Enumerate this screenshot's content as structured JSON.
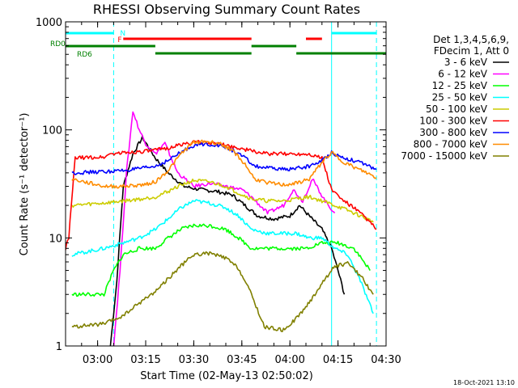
{
  "chart_data": {
    "type": "line",
    "title": "RHESSI Observing Summary Count Rates",
    "xlabel": "Start Time (02-May-13 02:50:02)",
    "ylabel": "Count Rate (s⁻¹ detector⁻¹)",
    "yscale": "log",
    "ylim": [
      1,
      1000
    ],
    "xlim": [
      "02:50",
      "04:30"
    ],
    "x_tick_labels": [
      "03:00",
      "03:15",
      "03:30",
      "03:45",
      "04:00",
      "04:15",
      "04:30"
    ],
    "y_tick_labels": [
      "1",
      "10",
      "100",
      "1000"
    ],
    "legend_header": [
      "Det 1,3,4,5,6,9,",
      "FDecim 1, Att 0"
    ],
    "legend_position": "right",
    "footer": "18-Oct-2021 13:10",
    "flags": [
      {
        "label": "N",
        "color": "#00ffff",
        "segments": [
          [
            "02:50",
            "03:05"
          ],
          [
            "04:13",
            "04:27"
          ]
        ]
      },
      {
        "label": "F",
        "color": "#ff0000",
        "segments": [
          [
            "03:08",
            "03:48"
          ],
          [
            "04:05",
            "04:10"
          ]
        ]
      },
      {
        "label": "RD0",
        "color": "#008000",
        "segments": [
          [
            "02:50",
            "03:18"
          ],
          [
            "03:48",
            "04:02"
          ]
        ]
      },
      {
        "label": "RD6",
        "color": "#008000",
        "segments": [
          [
            "03:18",
            "03:48"
          ],
          [
            "04:02",
            "04:30"
          ]
        ]
      }
    ],
    "vlines": [
      {
        "color": "#00ffff",
        "style": "solid",
        "t": [
          "02:50",
          "04:13"
        ]
      },
      {
        "color": "#00ffff",
        "style": "dashed",
        "t": [
          "03:05",
          "04:27"
        ]
      }
    ],
    "series": [
      {
        "name": "3 - 6 keV",
        "color": "#000000",
        "points": [
          [
            "03:04",
            1
          ],
          [
            "03:06",
            4
          ],
          [
            "03:08",
            30
          ],
          [
            "03:11",
            60
          ],
          [
            "03:14",
            85
          ],
          [
            "03:18",
            55
          ],
          [
            "03:22",
            40
          ],
          [
            "03:27",
            30
          ],
          [
            "03:32",
            28
          ],
          [
            "03:37",
            27
          ],
          [
            "03:42",
            25
          ],
          [
            "03:46",
            20
          ],
          [
            "03:50",
            16
          ],
          [
            "03:55",
            15
          ],
          [
            "04:00",
            16
          ],
          [
            "04:03",
            20
          ],
          [
            "04:06",
            16
          ],
          [
            "04:10",
            12
          ],
          [
            "04:13",
            8
          ],
          [
            "04:15",
            5
          ],
          [
            "04:17",
            3
          ]
        ]
      },
      {
        "name": "6 - 12 keV",
        "color": "#ff00ff",
        "points": [
          [
            "03:05",
            1
          ],
          [
            "03:07",
            5
          ],
          [
            "03:09",
            40
          ],
          [
            "03:11",
            150
          ],
          [
            "03:13",
            100
          ],
          [
            "03:15",
            75
          ],
          [
            "03:18",
            60
          ],
          [
            "03:21",
            75
          ],
          [
            "03:25",
            40
          ],
          [
            "03:30",
            30
          ],
          [
            "03:35",
            32
          ],
          [
            "03:40",
            30
          ],
          [
            "03:45",
            28
          ],
          [
            "03:48",
            24
          ],
          [
            "03:53",
            17
          ],
          [
            "03:58",
            20
          ],
          [
            "04:01",
            28
          ],
          [
            "04:04",
            22
          ],
          [
            "04:07",
            35
          ],
          [
            "04:11",
            22
          ],
          [
            "04:14",
            17
          ]
        ]
      },
      {
        "name": "12 - 25 keV",
        "color": "#00ff00",
        "points": [
          [
            "02:52",
            3
          ],
          [
            "03:02",
            3
          ],
          [
            "03:05",
            5
          ],
          [
            "03:08",
            7
          ],
          [
            "03:13",
            8
          ],
          [
            "03:18",
            8
          ],
          [
            "03:22",
            10
          ],
          [
            "03:26",
            12
          ],
          [
            "03:30",
            13
          ],
          [
            "03:35",
            13
          ],
          [
            "03:40",
            12
          ],
          [
            "03:44",
            10
          ],
          [
            "03:48",
            8
          ],
          [
            "03:55",
            8
          ],
          [
            "04:00",
            8
          ],
          [
            "04:05",
            8
          ],
          [
            "04:10",
            9
          ],
          [
            "04:15",
            9
          ],
          [
            "04:20",
            8
          ],
          [
            "04:25",
            5
          ]
        ]
      },
      {
        "name": "25 - 50 keV",
        "color": "#00ffff",
        "points": [
          [
            "02:52",
            7
          ],
          [
            "03:02",
            8
          ],
          [
            "03:08",
            9
          ],
          [
            "03:13",
            10
          ],
          [
            "03:18",
            12
          ],
          [
            "03:22",
            15
          ],
          [
            "03:26",
            19
          ],
          [
            "03:30",
            22
          ],
          [
            "03:35",
            21
          ],
          [
            "03:40",
            19
          ],
          [
            "03:44",
            16
          ],
          [
            "03:48",
            12
          ],
          [
            "03:53",
            11
          ],
          [
            "03:58",
            11
          ],
          [
            "04:02",
            11
          ],
          [
            "04:06",
            10
          ],
          [
            "04:10",
            10
          ],
          [
            "04:14",
            8
          ],
          [
            "04:18",
            7
          ],
          [
            "04:22",
            4
          ],
          [
            "04:26",
            2
          ]
        ]
      },
      {
        "name": "50 - 100 keV",
        "color": "#cccc00",
        "points": [
          [
            "02:52",
            20
          ],
          [
            "03:02",
            21
          ],
          [
            "03:08",
            22
          ],
          [
            "03:14",
            23
          ],
          [
            "03:18",
            24
          ],
          [
            "03:22",
            27
          ],
          [
            "03:26",
            31
          ],
          [
            "03:30",
            34
          ],
          [
            "03:35",
            33
          ],
          [
            "03:40",
            30
          ],
          [
            "03:44",
            26
          ],
          [
            "03:48",
            23
          ],
          [
            "03:53",
            22
          ],
          [
            "03:58",
            22
          ],
          [
            "04:02",
            23
          ],
          [
            "04:06",
            24
          ],
          [
            "04:10",
            22
          ],
          [
            "04:14",
            20
          ],
          [
            "04:18",
            18
          ],
          [
            "04:22",
            16
          ],
          [
            "04:26",
            14
          ]
        ]
      },
      {
        "name": "100 - 300 keV",
        "color": "#ff0000",
        "points": [
          [
            "02:50",
            8
          ],
          [
            "02:51",
            10
          ],
          [
            "02:53",
            55
          ],
          [
            "03:02",
            56
          ],
          [
            "03:04",
            60
          ],
          [
            "03:10",
            62
          ],
          [
            "03:17",
            64
          ],
          [
            "03:22",
            68
          ],
          [
            "03:26",
            73
          ],
          [
            "03:30",
            77
          ],
          [
            "03:35",
            76
          ],
          [
            "03:40",
            72
          ],
          [
            "03:44",
            68
          ],
          [
            "03:48",
            64
          ],
          [
            "03:53",
            60
          ],
          [
            "03:58",
            60
          ],
          [
            "04:02",
            60
          ],
          [
            "04:06",
            60
          ],
          [
            "04:10",
            55
          ],
          [
            "04:13",
            28
          ],
          [
            "04:16",
            23
          ],
          [
            "04:20",
            19
          ],
          [
            "04:24",
            15
          ],
          [
            "04:27",
            12
          ]
        ]
      },
      {
        "name": "300 - 800 keV",
        "color": "#0000ff",
        "points": [
          [
            "02:52",
            40
          ],
          [
            "03:02",
            41
          ],
          [
            "03:08",
            42
          ],
          [
            "03:14",
            44
          ],
          [
            "03:18",
            46
          ],
          [
            "03:22",
            52
          ],
          [
            "03:26",
            62
          ],
          [
            "03:30",
            72
          ],
          [
            "03:34",
            74
          ],
          [
            "03:38",
            72
          ],
          [
            "03:42",
            65
          ],
          [
            "03:46",
            55
          ],
          [
            "03:49",
            46
          ],
          [
            "03:54",
            44
          ],
          [
            "03:58",
            43
          ],
          [
            "04:02",
            44
          ],
          [
            "04:06",
            46
          ],
          [
            "04:10",
            52
          ],
          [
            "04:13",
            62
          ],
          [
            "04:16",
            56
          ],
          [
            "04:20",
            52
          ],
          [
            "04:24",
            47
          ],
          [
            "04:27",
            43
          ]
        ]
      },
      {
        "name": "800 - 7000 keV",
        "color": "#ff8c00",
        "points": [
          [
            "02:52",
            35
          ],
          [
            "03:02",
            30
          ],
          [
            "03:08",
            30
          ],
          [
            "03:14",
            31
          ],
          [
            "03:18",
            33
          ],
          [
            "03:22",
            42
          ],
          [
            "03:26",
            60
          ],
          [
            "03:30",
            77
          ],
          [
            "03:34",
            78
          ],
          [
            "03:38",
            75
          ],
          [
            "03:42",
            65
          ],
          [
            "03:46",
            48
          ],
          [
            "03:49",
            35
          ],
          [
            "03:54",
            32
          ],
          [
            "03:58",
            31
          ],
          [
            "04:02",
            32
          ],
          [
            "04:06",
            35
          ],
          [
            "04:10",
            50
          ],
          [
            "04:13",
            62
          ],
          [
            "04:16",
            52
          ],
          [
            "04:20",
            45
          ],
          [
            "04:24",
            40
          ],
          [
            "04:27",
            36
          ]
        ]
      },
      {
        "name": "7000 - 15000 keV",
        "color": "#808000",
        "points": [
          [
            "02:52",
            1.5
          ],
          [
            "03:02",
            1.6
          ],
          [
            "03:08",
            1.9
          ],
          [
            "03:13",
            2.5
          ],
          [
            "03:18",
            3.2
          ],
          [
            "03:22",
            4.2
          ],
          [
            "03:26",
            5.5
          ],
          [
            "03:30",
            7
          ],
          [
            "03:35",
            7.2
          ],
          [
            "03:40",
            6.5
          ],
          [
            "03:44",
            5.2
          ],
          [
            "03:48",
            3
          ],
          [
            "03:52",
            1.5
          ],
          [
            "03:58",
            1.4
          ],
          [
            "04:02",
            1.8
          ],
          [
            "04:06",
            2.5
          ],
          [
            "04:10",
            3.8
          ],
          [
            "04:14",
            5.5
          ],
          [
            "04:18",
            5.8
          ],
          [
            "04:22",
            4.5
          ],
          [
            "04:26",
            3
          ]
        ]
      }
    ]
  }
}
